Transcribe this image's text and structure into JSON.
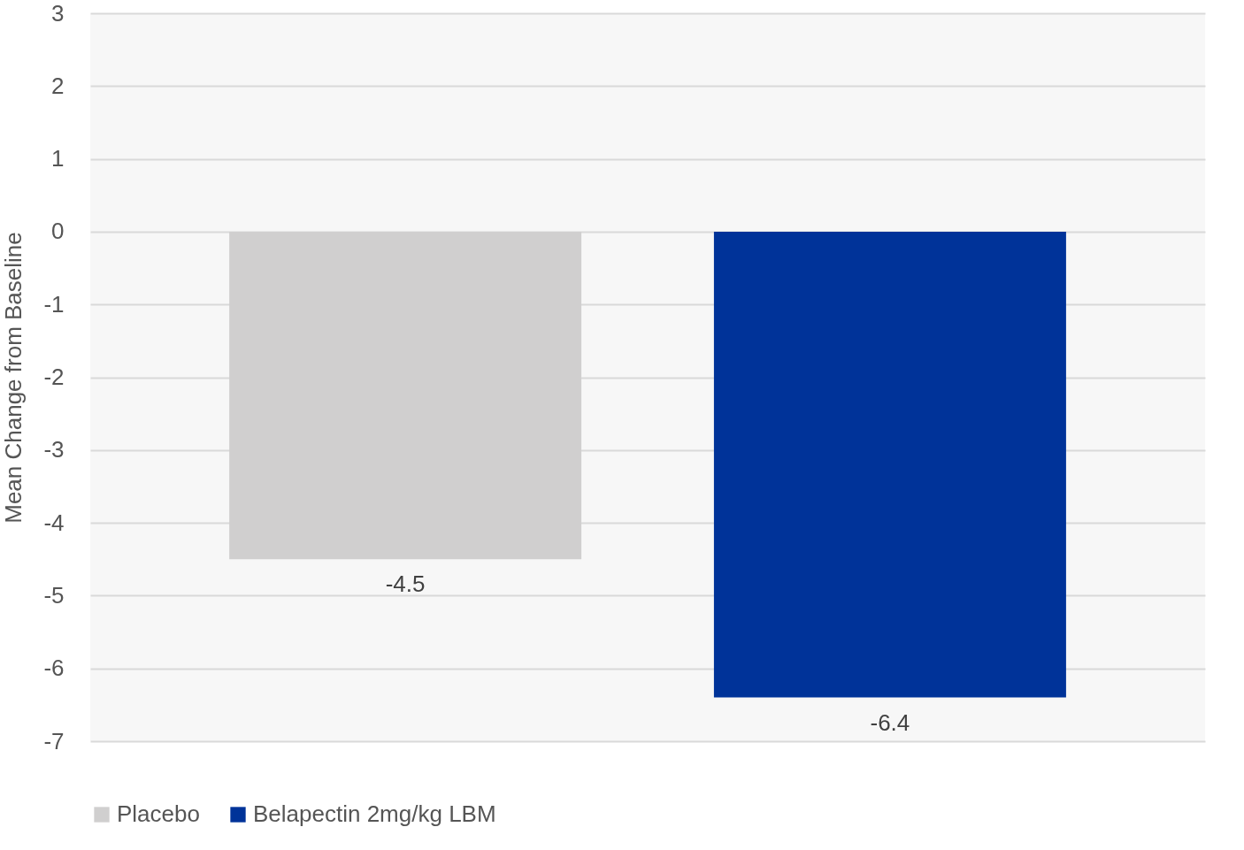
{
  "chart_data": {
    "type": "bar",
    "ylabel": "Mean Change from Baseline",
    "categories": [
      null
    ],
    "series": [
      {
        "name": "Placebo",
        "color": "#d0cfcf",
        "values": [
          -4.5
        ]
      },
      {
        "name": "Belapectin 2mg/kg LBM",
        "color": "#003399",
        "values": [
          -6.4
        ]
      }
    ],
    "ylim": [
      -7,
      3
    ],
    "yticks": [
      -7,
      -6,
      -5,
      -4,
      -3,
      -2,
      -1,
      0,
      1,
      2,
      3
    ],
    "grid": "y",
    "legend": "bottom",
    "data_labels": true
  }
}
